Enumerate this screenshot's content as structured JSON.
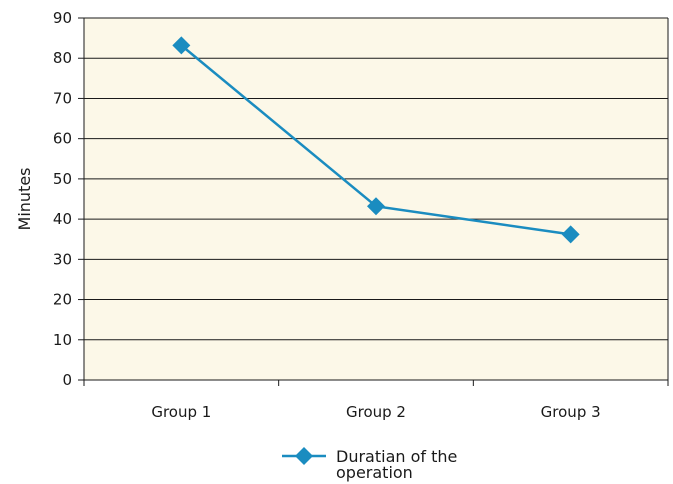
{
  "chart_data": {
    "type": "line",
    "title": "",
    "xlabel": "",
    "ylabel": "Minutes",
    "categories": [
      "Group 1",
      "Group 2",
      "Group 3"
    ],
    "series": [
      {
        "name": "Duratian of the operation",
        "values": [
          83.2,
          43.2,
          36.2
        ]
      }
    ],
    "ylim": [
      0,
      90
    ],
    "yticks": [
      0,
      10,
      20,
      30,
      40,
      50,
      60,
      70,
      80,
      90
    ],
    "grid": true,
    "legend_position": "bottom",
    "colors": {
      "plot_background": "#FCF8E8",
      "series_line": "#1A8CC0",
      "gridline": "#1a1a1a"
    }
  },
  "legend": {
    "line1": "Duratian of the",
    "line2": "operation"
  }
}
